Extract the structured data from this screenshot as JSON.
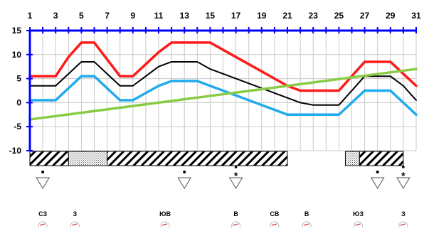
{
  "chart_data": {
    "type": "line",
    "x": [
      1,
      2,
      3,
      4,
      5,
      6,
      7,
      8,
      9,
      10,
      11,
      12,
      13,
      14,
      15,
      16,
      17,
      18,
      19,
      20,
      21,
      22,
      23,
      24,
      25,
      26,
      27,
      28,
      29,
      30,
      31
    ],
    "x_tick_labels": [
      "1",
      "3",
      "5",
      "7",
      "9",
      "11",
      "13",
      "15",
      "17",
      "19",
      "21",
      "23",
      "25",
      "27",
      "29",
      "31"
    ],
    "y_tick_labels": [
      "15",
      "10",
      "5",
      "0",
      "-5",
      "-10"
    ],
    "ylim": [
      -10,
      15
    ],
    "xlim": [
      1,
      31
    ],
    "grid": true,
    "series": [
      {
        "color": "#ff1a1a",
        "values": [
          5.5,
          5.5,
          5.5,
          9.5,
          12.5,
          12.5,
          9,
          5.5,
          5.5,
          8,
          10.5,
          12.5,
          12.5,
          12.5,
          12.5,
          11,
          9.5,
          8,
          6.5,
          5,
          3.5,
          2.5,
          2.5,
          2.5,
          2.5,
          5.5,
          8.5,
          8.5,
          8.5,
          6,
          3.5
        ]
      },
      {
        "color": "#000000",
        "values": [
          3.5,
          3.5,
          3.5,
          6,
          8.5,
          8.5,
          6,
          3.5,
          3.5,
          5.5,
          7.5,
          8.5,
          8.5,
          8.5,
          7,
          6,
          5,
          4,
          3,
          2,
          1,
          0,
          -0.5,
          -0.5,
          -0.5,
          2.5,
          5.5,
          5.5,
          5.5,
          3.5,
          0.5
        ]
      },
      {
        "color": "#22aaee",
        "values": [
          0.5,
          0.5,
          0.5,
          3,
          5.5,
          5.5,
          3,
          0.5,
          0.5,
          2,
          3.5,
          4.5,
          4.5,
          4.5,
          3.5,
          2.5,
          1.5,
          0.5,
          -0.5,
          -1.5,
          -2.5,
          -2.5,
          -2.5,
          -2.5,
          -2.5,
          0,
          2.5,
          2.5,
          2.5,
          0,
          -2.5
        ]
      },
      {
        "color": "#88cc44",
        "values": [
          -3.5,
          -3.15,
          -2.8,
          -2.45,
          -2.1,
          -1.75,
          -1.4,
          -1.05,
          -0.7,
          -0.35,
          0,
          0.35,
          0.7,
          1.05,
          1.4,
          1.75,
          2.1,
          2.45,
          2.8,
          3.15,
          3.5,
          3.85,
          4.2,
          4.55,
          4.9,
          5.25,
          5.6,
          5.95,
          6.3,
          6.65,
          7
        ]
      }
    ],
    "condition_bars": [
      {
        "from": 1,
        "to": 4,
        "pattern": "hatch"
      },
      {
        "from": 4,
        "to": 7,
        "pattern": "dots"
      },
      {
        "from": 7,
        "to": 21,
        "pattern": "hatch"
      },
      {
        "from": 25.5,
        "to": 26.6,
        "pattern": "dots"
      },
      {
        "from": 26.6,
        "to": 30,
        "pattern": "hatch"
      }
    ],
    "precipitation": [
      {
        "day": 2,
        "kind": "rain"
      },
      {
        "day": 13,
        "kind": "rain"
      },
      {
        "day": 17,
        "kind": "snow"
      },
      {
        "day": 28,
        "kind": "rain"
      },
      {
        "day": 30,
        "kind": "snow"
      }
    ],
    "wind": [
      {
        "day": 2,
        "label": "СЗ"
      },
      {
        "day": 4.5,
        "label": "З"
      },
      {
        "day": 11.5,
        "label": "ЮВ"
      },
      {
        "day": 17,
        "label": "В"
      },
      {
        "day": 20,
        "label": "СВ"
      },
      {
        "day": 22.5,
        "label": "В"
      },
      {
        "day": 26.5,
        "label": "ЮЗ"
      },
      {
        "day": 30,
        "label": "З"
      }
    ]
  }
}
